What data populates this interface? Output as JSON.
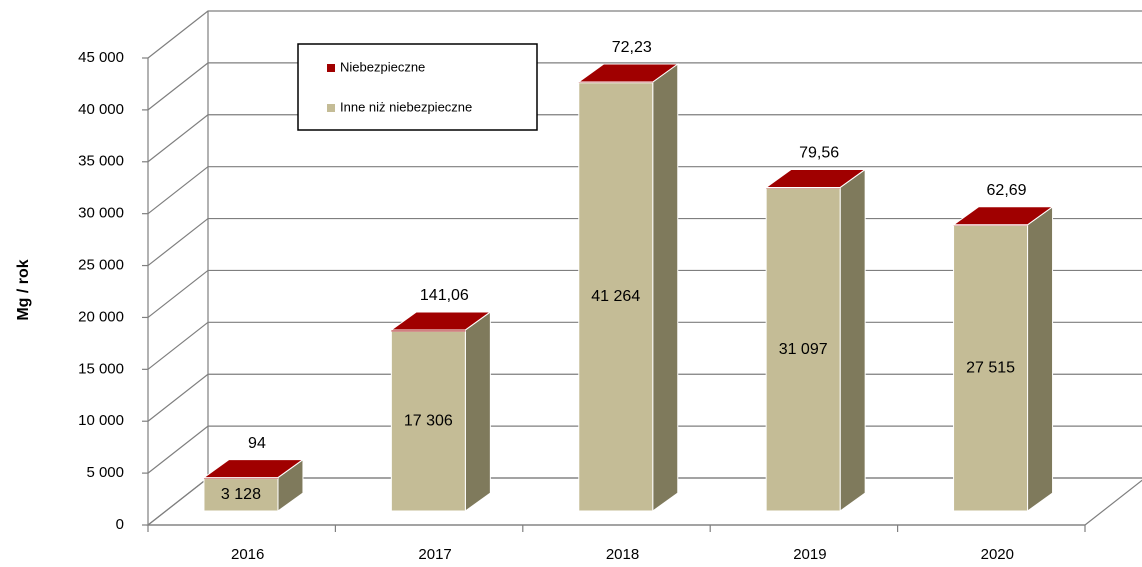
{
  "chart_data": {
    "type": "bar3d_stacked",
    "ylabel": "Mg / rok",
    "categories": [
      "2016",
      "2017",
      "2018",
      "2019",
      "2020"
    ],
    "series": [
      {
        "name": "Niebezpieczne",
        "color": "#a00000",
        "values": [
          94,
          141.06,
          72.23,
          79.56,
          62.69
        ],
        "value_labels": [
          "94",
          "141,06",
          "72,23",
          "79,56",
          "62,69"
        ]
      },
      {
        "name": "Inne niż niebezpieczne",
        "color": "#c4bc96",
        "values": [
          3128,
          17306,
          41264,
          31097,
          27515
        ],
        "value_labels": [
          "3 128",
          "17 306",
          "41 264",
          "31 097",
          "27 515"
        ]
      }
    ],
    "ylim": [
      0,
      45000
    ],
    "yticks": [
      0,
      {
        "value": 5000,
        "label": "5 000"
      },
      {
        "value": 10000,
        "label": "10 000"
      },
      {
        "value": 15000,
        "label": "15 000"
      },
      {
        "value": 20000,
        "label": "20 000"
      },
      {
        "value": 25000,
        "label": "25 000"
      },
      {
        "value": 30000,
        "label": "30 000"
      },
      {
        "value": 35000,
        "label": "35 000"
      },
      {
        "value": 40000,
        "label": "40 000"
      },
      {
        "value": 45000,
        "label": "45 000"
      }
    ],
    "grid": true
  }
}
